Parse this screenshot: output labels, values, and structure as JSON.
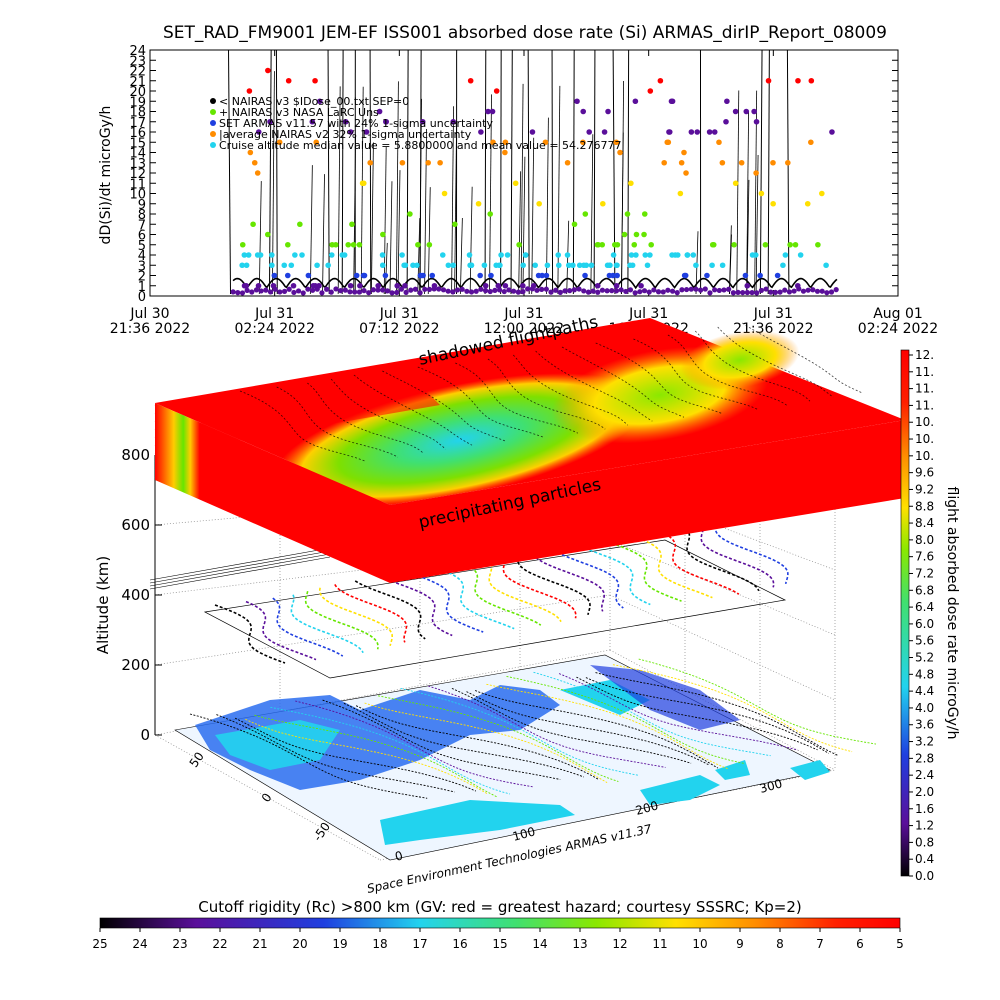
{
  "title": "SET_RAD_FM9001   JEM-EF ISS001 absorbed dose rate (Si) ARMAS_dirIP_Report_08009",
  "colors": {
    "red": "#ff0000",
    "orange": "#ff8c00",
    "yellow": "#ffe000",
    "green": "#66e600",
    "cyan": "#22d3ee",
    "blue": "#1f3fe0",
    "purple": "#5a0f9a",
    "black": "#000000"
  },
  "chart_data": [
    {
      "type": "scatter",
      "ylabel": "dD(Si)/dt microGy/h",
      "ylim": [
        0,
        24
      ],
      "y_ticks": [
        "0",
        "1",
        "2",
        "3",
        "4",
        "5",
        "6",
        "7",
        "8",
        "9",
        "10",
        "11",
        "12",
        "13",
        "14",
        "15",
        "16",
        "17",
        "18",
        "19",
        "20",
        "21",
        "22",
        "23",
        "24"
      ],
      "x_ticks": [
        {
          "date": "Jul 30",
          "time": "21:36  2022"
        },
        {
          "date": "Jul 31",
          "time": "02:24  2022"
        },
        {
          "date": "Jul 31",
          "time": "07:12  2022"
        },
        {
          "date": "Jul 31",
          "time": "12:00  2022"
        },
        {
          "date": "Jul 31",
          "time": "16:48  2022"
        },
        {
          "date": "Jul 31",
          "time": "21:36  2022"
        },
        {
          "date": "Aug 01",
          "time": "02:24  2022"
        }
      ],
      "legend": [
        "< NAIRAS v3 $IDose_00.txt  SEP=0",
        "+ NAIRAS v3 NASA LaRC  Uns",
        "SET ARMAS v11.57 with 24% 1-sigma uncertainty",
        "|average NAIRAS v2 32% 1-sigma uncertainty",
        "Cruise altitude median value = 5.8800000 and mean value = 54.276777"
      ],
      "spikes_hours": [
        3.1,
        4.6,
        4.9,
        6.9,
        7.4,
        7.9,
        8.5,
        9.9,
        10.4,
        11.8,
        12.9,
        13.5,
        13.9,
        14.6,
        15.5,
        16.3,
        17.1,
        17.9,
        18.4,
        21.2,
        23.5,
        23.8,
        24.6
      ],
      "series": [
        {
          "name": "< NAIRAS v3 $IDose_00.txt  SEP=0",
          "values_range": [
            0,
            2
          ]
        },
        {
          "name": "SET ARMAS v11.57 with 24% 1-sigma uncertainty",
          "values_range": [
            1,
            24
          ]
        }
      ]
    },
    {
      "type": "heatmap",
      "annotations": [
        "shadowed flightpaths",
        "precipitating particles"
      ],
      "zlabel": "Altitude (km)",
      "z_ticks": [
        "0",
        "200",
        "400",
        "600",
        "800"
      ],
      "lat_ticks": [
        "-50",
        "0",
        "50"
      ],
      "lon_ticks": [
        "0",
        "100",
        "200",
        "300"
      ],
      "credit": "Space Environment Technologies ARMAS v11.37"
    },
    {
      "type": "heatmap",
      "ylabel": "flight absorbed dose rate microGy/h",
      "ticks": [
        "12.",
        "11.",
        "11.",
        "11.",
        "10.",
        "10.",
        "10.",
        "9.6",
        "9.2",
        "8.8",
        "8.4",
        "8.0",
        "7.6",
        "7.2",
        "6.8",
        "6.4",
        "6.0",
        "5.6",
        "5.2",
        "4.8",
        "4.4",
        "4.0",
        "3.6",
        "3.2",
        "2.8",
        "2.4",
        "2.0",
        "1.6",
        "1.2",
        "0.8",
        "0.4",
        "0.0"
      ]
    },
    {
      "type": "heatmap",
      "title": "Cutoff rigidity (Rc) >800 km (GV: red = greatest hazard; courtesy SSSRC; Kp=2)",
      "ticks": [
        "25",
        "24",
        "23",
        "22",
        "21",
        "20",
        "19",
        "18",
        "17",
        "16",
        "15",
        "14",
        "13",
        "12",
        "11",
        "10",
        "9",
        "8",
        "7",
        "6",
        "5"
      ]
    }
  ]
}
